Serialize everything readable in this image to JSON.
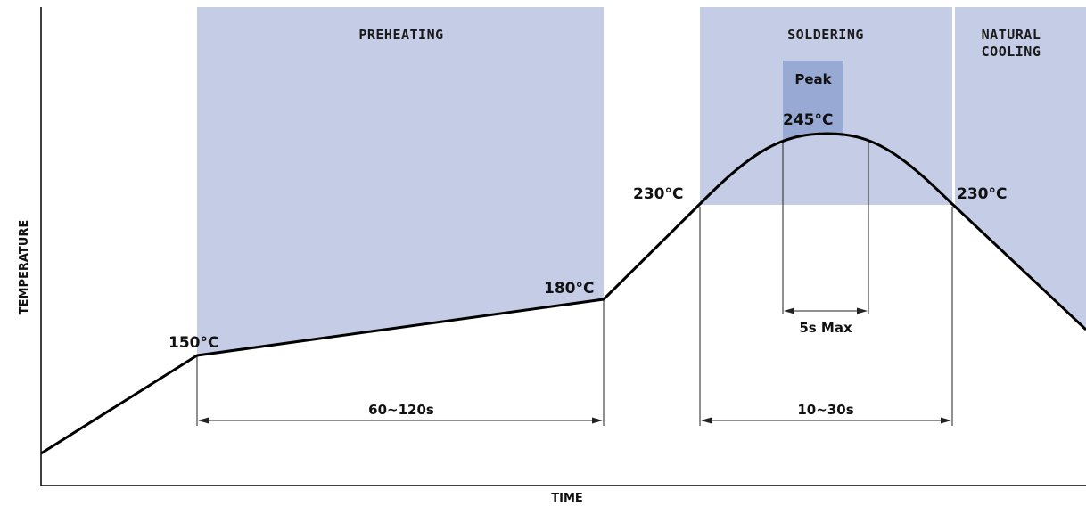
{
  "axes": {
    "x_label": "TIME",
    "y_label": "TEMPERATURE"
  },
  "zones": {
    "preheating": "PREHEATING",
    "soldering": "SOLDERING",
    "cooling_line1": "NATURAL",
    "cooling_line2": "COOLING",
    "peak": "Peak"
  },
  "temperatures": {
    "t150": "150°C",
    "t180": "180°C",
    "t230_rise": "230°C",
    "t245": "245°C",
    "t230_fall": "230°C"
  },
  "durations": {
    "preheat": "60~120s",
    "soldering": "10~30s",
    "peak": "5s Max"
  },
  "colors": {
    "zone_fill": "#c5cde6",
    "peak_fill": "#98aad4",
    "curve": "#000000",
    "dim_line": "#222222"
  }
}
